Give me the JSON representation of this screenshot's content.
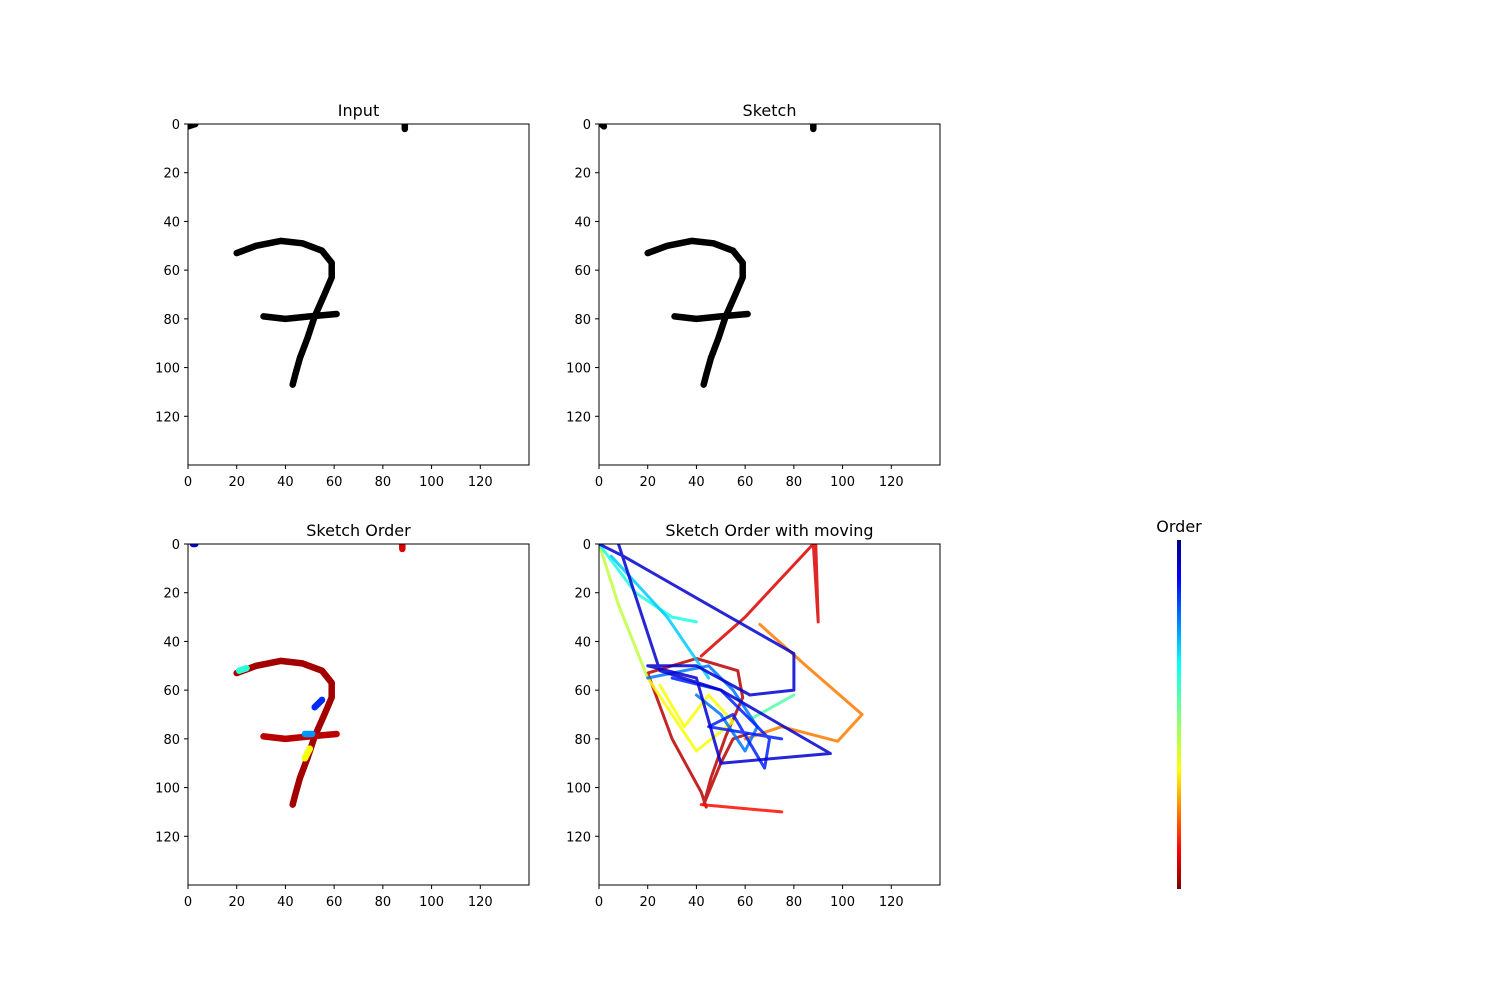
{
  "figure": {
    "panels": [
      {
        "id": "input",
        "title": "Input"
      },
      {
        "id": "sketch",
        "title": "Sketch"
      },
      {
        "id": "sketch-order",
        "title": "Sketch Order"
      },
      {
        "id": "sketch-order-moving",
        "title": "Sketch Order with moving"
      }
    ],
    "colorbar": {
      "title": "Order",
      "colormap": "jet",
      "direction": "high-at-top"
    }
  },
  "chart_data": [
    {
      "type": "heatmap",
      "title": "Input",
      "xlim": [
        0,
        140
      ],
      "ylim": [
        140,
        0
      ],
      "x_ticks": [
        0,
        20,
        40,
        60,
        80,
        100,
        120
      ],
      "y_ticks": [
        0,
        20,
        40,
        60,
        80,
        100,
        120
      ],
      "stroke_color": "#000000",
      "strokes": [
        [
          [
            20,
            53
          ],
          [
            28,
            50
          ],
          [
            38,
            48
          ],
          [
            47,
            49
          ],
          [
            55,
            52
          ],
          [
            59,
            57
          ],
          [
            59,
            63
          ],
          [
            56,
            70
          ],
          [
            52,
            79
          ],
          [
            49,
            88
          ],
          [
            46,
            96
          ],
          [
            44,
            103
          ],
          [
            43,
            107
          ]
        ],
        [
          [
            31,
            79
          ],
          [
            40,
            80
          ],
          [
            50,
            79
          ],
          [
            61,
            78
          ]
        ],
        [
          [
            0,
            1
          ],
          [
            3,
            0
          ]
        ],
        [
          [
            89,
            0
          ],
          [
            89,
            2
          ]
        ]
      ]
    },
    {
      "type": "heatmap",
      "title": "Sketch",
      "xlim": [
        0,
        140
      ],
      "ylim": [
        140,
        0
      ],
      "x_ticks": [
        0,
        20,
        40,
        60,
        80,
        100,
        120
      ],
      "y_ticks": [
        0,
        20,
        40,
        60,
        80,
        100,
        120
      ],
      "stroke_color": "#000000",
      "strokes": [
        [
          [
            20,
            53
          ],
          [
            28,
            50
          ],
          [
            38,
            48
          ],
          [
            47,
            49
          ],
          [
            55,
            52
          ],
          [
            59,
            57
          ],
          [
            59,
            63
          ],
          [
            56,
            70
          ],
          [
            52,
            79
          ],
          [
            49,
            88
          ],
          [
            46,
            96
          ],
          [
            44,
            103
          ],
          [
            43,
            107
          ]
        ],
        [
          [
            31,
            79
          ],
          [
            40,
            80
          ],
          [
            50,
            79
          ],
          [
            61,
            78
          ]
        ],
        [
          [
            1,
            0
          ],
          [
            2,
            1
          ]
        ],
        [
          [
            88,
            0
          ],
          [
            88,
            2
          ]
        ]
      ]
    },
    {
      "type": "heatmap",
      "title": "Sketch Order",
      "xlim": [
        0,
        140
      ],
      "ylim": [
        140,
        0
      ],
      "x_ticks": [
        0,
        20,
        40,
        60,
        80,
        100,
        120
      ],
      "y_ticks": [
        0,
        20,
        40,
        60,
        80,
        100,
        120
      ],
      "colorbar_label": "Order",
      "strokes": [
        {
          "order": 0.03,
          "points": [
            [
              20,
              53
            ],
            [
              28,
              50
            ],
            [
              38,
              48
            ],
            [
              47,
              49
            ],
            [
              55,
              52
            ],
            [
              59,
              57
            ],
            [
              59,
              63
            ],
            [
              56,
              70
            ],
            [
              52,
              79
            ],
            [
              49,
              88
            ],
            [
              46,
              96
            ],
            [
              44,
              103
            ],
            [
              43,
              107
            ]
          ]
        },
        {
          "order": 0.05,
          "points": [
            [
              31,
              79
            ],
            [
              40,
              80
            ],
            [
              50,
              79
            ],
            [
              61,
              78
            ]
          ]
        },
        {
          "order": 0.08,
          "points": [
            [
              88,
              0
            ],
            [
              88,
              2
            ]
          ]
        },
        {
          "order": 0.35,
          "points": [
            [
              50,
              84
            ],
            [
              48,
              88
            ]
          ]
        },
        {
          "order": 0.6,
          "points": [
            [
              21,
              52
            ],
            [
              24,
              51
            ]
          ]
        },
        {
          "order": 0.75,
          "points": [
            [
              48,
              78
            ],
            [
              51,
              78
            ]
          ]
        },
        {
          "order": 0.85,
          "points": [
            [
              52,
              67
            ],
            [
              55,
              64
            ]
          ]
        },
        {
          "order": 0.92,
          "points": [
            [
              2,
              0
            ],
            [
              3,
              0
            ]
          ]
        }
      ]
    },
    {
      "type": "line",
      "title": "Sketch Order with moving",
      "xlim": [
        0,
        140
      ],
      "ylim": [
        140,
        0
      ],
      "x_ticks": [
        0,
        20,
        40,
        60,
        80,
        100,
        120
      ],
      "y_ticks": [
        0,
        20,
        40,
        60,
        80,
        100,
        120
      ],
      "colorbar_label": "Order",
      "strokes": [
        {
          "order": 0.05,
          "points": [
            [
              44,
              108
            ],
            [
              42,
              102
            ],
            [
              30,
              80
            ],
            [
              20,
              53
            ],
            [
              40,
              47
            ],
            [
              57,
              52
            ],
            [
              59,
              63
            ],
            [
              52,
              79
            ],
            [
              46,
              96
            ],
            [
              43,
              107
            ],
            [
              50,
              90
            ],
            [
              55,
              80
            ],
            [
              61,
              78
            ]
          ]
        },
        {
          "order": 0.08,
          "points": [
            [
              42,
              46
            ],
            [
              60,
              30
            ],
            [
              88,
              0
            ],
            [
              90,
              32
            ],
            [
              89,
              0
            ]
          ]
        },
        {
          "order": 0.12,
          "points": [
            [
              42,
              107
            ],
            [
              75,
              110
            ]
          ]
        },
        {
          "order": 0.22,
          "points": [
            [
              66,
              33
            ],
            [
              85,
              50
            ],
            [
              108,
              70
            ],
            [
              98,
              81
            ],
            [
              75,
              75
            ],
            [
              60,
              80
            ]
          ]
        },
        {
          "order": 0.35,
          "points": [
            [
              20,
              55
            ],
            [
              30,
              70
            ],
            [
              40,
              85
            ],
            [
              55,
              73
            ],
            [
              45,
              62
            ],
            [
              35,
              75
            ],
            [
              25,
              58
            ]
          ]
        },
        {
          "order": 0.42,
          "points": [
            [
              0,
              0
            ],
            [
              8,
              25
            ],
            [
              20,
              55
            ]
          ]
        },
        {
          "order": 0.55,
          "points": [
            [
              62,
              72
            ],
            [
              80,
              62
            ]
          ]
        },
        {
          "order": 0.62,
          "points": [
            [
              0,
              0
            ],
            [
              15,
              20
            ],
            [
              30,
              30
            ],
            [
              40,
              32
            ]
          ]
        },
        {
          "order": 0.7,
          "points": [
            [
              5,
              5
            ],
            [
              28,
              30
            ],
            [
              45,
              55
            ]
          ]
        },
        {
          "order": 0.78,
          "points": [
            [
              20,
              55
            ],
            [
              45,
              50
            ],
            [
              55,
              60
            ],
            [
              65,
              75
            ],
            [
              60,
              85
            ],
            [
              50,
              70
            ],
            [
              40,
              62
            ]
          ]
        },
        {
          "order": 0.86,
          "points": [
            [
              30,
              55
            ],
            [
              50,
              60
            ],
            [
              70,
              80
            ],
            [
              68,
              92
            ],
            [
              55,
              70
            ],
            [
              45,
              75
            ],
            [
              75,
              80
            ]
          ]
        },
        {
          "order": 0.93,
          "points": [
            [
              0,
              0
            ],
            [
              10,
              5
            ],
            [
              45,
              25
            ],
            [
              80,
              45
            ],
            [
              80,
              60
            ],
            [
              62,
              62
            ],
            [
              40,
              50
            ],
            [
              20,
              50
            ],
            [
              40,
              55
            ],
            [
              50,
              90
            ],
            [
              95,
              86
            ],
            [
              50,
              60
            ],
            [
              25,
              52
            ],
            [
              8,
              0
            ]
          ]
        }
      ]
    }
  ]
}
